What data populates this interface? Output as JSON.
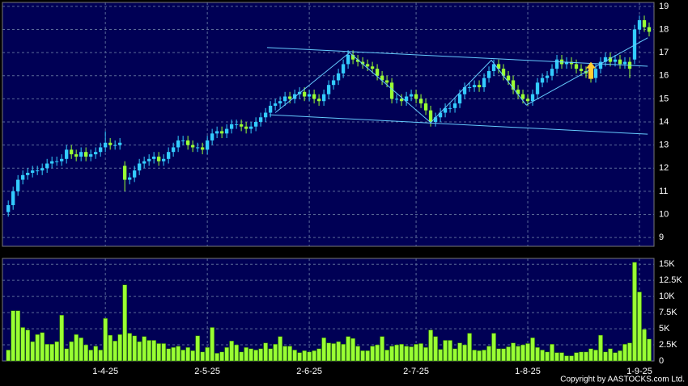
{
  "chart_data": {
    "type": "candlestick",
    "up_color": "#33ccff",
    "down_color": "#99ff33",
    "open": [
      10.1,
      10.4,
      11.0,
      11.5,
      11.7,
      11.8,
      11.9,
      11.9,
      12.0,
      12.2,
      12.3,
      12.3,
      12.4,
      12.8,
      12.6,
      12.5,
      12.7,
      12.5,
      12.6,
      12.7,
      12.9,
      13.1,
      13.0,
      13.0,
      12.1,
      11.5,
      11.6,
      11.9,
      12.2,
      12.3,
      12.4,
      12.5,
      12.3,
      12.4,
      12.7,
      12.9,
      13.2,
      13.2,
      13.0,
      12.9,
      12.9,
      12.8,
      13.2,
      13.5,
      13.6,
      13.5,
      13.7,
      13.9,
      13.9,
      13.8,
      13.7,
      13.8,
      14.0,
      14.2,
      14.4,
      14.7,
      14.8,
      14.9,
      15.1,
      15.0,
      15.2,
      15.3,
      15.1,
      15.2,
      15.0,
      14.9,
      15.2,
      15.6,
      15.8,
      16.1,
      16.5,
      16.9,
      16.7,
      16.6,
      16.5,
      16.4,
      16.3,
      16.0,
      15.8,
      15.7,
      15.0,
      15.0,
      14.9,
      15.1,
      15.2,
      15.0,
      14.8,
      14.5,
      14.0,
      14.2,
      14.4,
      14.6,
      14.6,
      14.8,
      15.2,
      15.5,
      15.5,
      15.6,
      15.5,
      15.9,
      16.2,
      16.5,
      16.3,
      16.0,
      15.8,
      15.4,
      15.2,
      15.0,
      14.9,
      15.2,
      15.7,
      15.9,
      16.0,
      16.3,
      16.7,
      16.5,
      16.6,
      16.5,
      16.3,
      16.2,
      16.1,
      15.9,
      16.3,
      16.6,
      16.8,
      16.6,
      16.7,
      16.5,
      16.6,
      16.7,
      18.0,
      18.4,
      18.1
    ],
    "high": [
      10.6,
      11.2,
      11.7,
      11.9,
      12.0,
      12.1,
      12.1,
      12.2,
      12.4,
      12.5,
      12.5,
      12.6,
      13.0,
      13.0,
      12.8,
      12.9,
      12.9,
      12.8,
      12.9,
      13.1,
      13.6,
      13.3,
      13.2,
      13.3,
      12.3,
      11.8,
      12.1,
      12.4,
      12.5,
      12.6,
      12.7,
      12.7,
      12.6,
      12.9,
      13.1,
      13.4,
      13.4,
      13.4,
      13.2,
      13.1,
      13.1,
      13.4,
      13.7,
      13.8,
      13.8,
      13.9,
      14.1,
      14.1,
      14.1,
      14.0,
      14.0,
      14.2,
      14.4,
      14.6,
      14.9,
      15.0,
      15.1,
      15.3,
      15.3,
      15.4,
      15.5,
      15.5,
      15.4,
      15.4,
      15.2,
      15.4,
      15.8,
      16.0,
      16.3,
      16.7,
      17.1,
      17.1,
      16.9,
      16.8,
      16.7,
      16.6,
      16.5,
      16.2,
      16.0,
      15.9,
      15.2,
      15.2,
      15.3,
      15.4,
      15.4,
      15.2,
      15.0,
      14.7,
      14.4,
      14.6,
      14.8,
      14.8,
      15.0,
      15.4,
      15.7,
      15.7,
      15.8,
      15.8,
      16.1,
      16.4,
      16.7,
      16.7,
      16.5,
      16.2,
      16.0,
      15.6,
      15.4,
      15.2,
      15.4,
      15.9,
      16.1,
      16.2,
      16.5,
      16.9,
      16.9,
      16.8,
      16.8,
      16.7,
      16.5,
      16.4,
      16.3,
      16.5,
      16.8,
      17.0,
      17.0,
      16.9,
      16.9,
      16.8,
      16.8,
      18.2,
      18.6,
      18.6,
      18.3
    ],
    "low": [
      9.9,
      10.2,
      10.8,
      11.3,
      11.5,
      11.6,
      11.7,
      11.7,
      11.8,
      12.0,
      12.1,
      12.1,
      12.2,
      12.4,
      12.3,
      12.3,
      12.3,
      12.3,
      12.4,
      12.5,
      12.7,
      12.8,
      12.8,
      12.8,
      11.0,
      11.3,
      11.4,
      11.7,
      12.0,
      12.1,
      12.2,
      12.1,
      12.1,
      12.2,
      12.5,
      12.7,
      13.0,
      12.8,
      12.7,
      12.7,
      12.6,
      12.6,
      13.0,
      13.3,
      13.3,
      13.3,
      13.5,
      13.7,
      13.6,
      13.5,
      13.5,
      13.6,
      13.8,
      14.0,
      14.2,
      14.5,
      14.6,
      14.7,
      14.8,
      14.8,
      15.0,
      14.9,
      14.9,
      14.8,
      14.7,
      14.7,
      15.0,
      15.4,
      15.6,
      15.9,
      16.3,
      16.5,
      16.4,
      16.3,
      16.2,
      16.1,
      15.8,
      15.6,
      15.5,
      14.8,
      14.8,
      14.7,
      14.7,
      14.9,
      14.8,
      14.6,
      14.3,
      13.8,
      13.8,
      14.0,
      14.2,
      14.4,
      14.4,
      14.6,
      15.0,
      15.3,
      15.3,
      15.3,
      15.3,
      15.7,
      16.0,
      16.1,
      15.8,
      15.6,
      15.2,
      15.0,
      14.8,
      14.7,
      14.7,
      15.0,
      15.5,
      15.7,
      15.8,
      16.1,
      16.3,
      16.3,
      16.3,
      16.1,
      16.0,
      15.9,
      15.7,
      15.7,
      16.1,
      16.4,
      16.4,
      16.4,
      16.3,
      16.3,
      15.9,
      16.5,
      17.8,
      17.9,
      17.7
    ],
    "close": [
      10.4,
      11.0,
      11.5,
      11.7,
      11.8,
      11.9,
      11.9,
      12.0,
      12.2,
      12.3,
      12.3,
      12.4,
      12.8,
      12.6,
      12.5,
      12.7,
      12.5,
      12.6,
      12.7,
      12.9,
      13.1,
      13.0,
      13.0,
      13.1,
      11.5,
      11.6,
      11.9,
      12.2,
      12.3,
      12.4,
      12.5,
      12.3,
      12.4,
      12.7,
      12.9,
      13.2,
      13.2,
      13.0,
      12.9,
      12.9,
      12.8,
      13.2,
      13.5,
      13.6,
      13.5,
      13.7,
      13.9,
      13.9,
      13.8,
      13.7,
      13.8,
      14.0,
      14.2,
      14.4,
      14.7,
      14.8,
      14.9,
      15.1,
      15.0,
      15.2,
      15.3,
      15.1,
      15.2,
      15.0,
      14.9,
      15.2,
      15.6,
      15.8,
      16.1,
      16.5,
      16.9,
      16.7,
      16.6,
      16.5,
      16.4,
      16.3,
      16.0,
      15.8,
      15.7,
      15.0,
      15.0,
      14.9,
      15.1,
      15.2,
      15.0,
      14.8,
      14.5,
      14.0,
      14.2,
      14.4,
      14.6,
      14.6,
      14.8,
      15.2,
      15.5,
      15.5,
      15.6,
      15.5,
      15.9,
      16.2,
      16.5,
      16.3,
      16.0,
      15.8,
      15.4,
      15.2,
      15.0,
      14.9,
      15.2,
      15.7,
      15.9,
      16.0,
      16.3,
      16.7,
      16.5,
      16.6,
      16.5,
      16.3,
      16.2,
      16.1,
      15.9,
      16.3,
      16.6,
      16.8,
      16.6,
      16.7,
      16.5,
      16.6,
      16.3,
      18.0,
      18.4,
      18.1,
      17.9
    ],
    "xlim": [
      -1.2,
      133
    ],
    "xticks": [
      {
        "value": 20,
        "label": "1-4-25"
      },
      {
        "value": 41,
        "label": "2-5-25"
      },
      {
        "value": 62,
        "label": "2-6-25"
      },
      {
        "value": 84,
        "label": "2-7-25"
      },
      {
        "value": 107,
        "label": "1-8-25"
      },
      {
        "value": 130,
        "label": "1-9-25"
      }
    ],
    "ylim": [
      8.62,
      19.17
    ],
    "yticks": [
      9,
      10,
      11,
      12,
      13,
      14,
      15,
      16,
      17,
      18,
      19
    ],
    "grid": true,
    "trend_color": "#66ccff",
    "trend_lines": [
      {
        "points": [
          [
            53.3,
            17.22
          ],
          [
            131.7,
            16.41
          ]
        ]
      },
      {
        "points": [
          [
            53.8,
            14.31
          ],
          [
            131.7,
            13.47
          ]
        ]
      },
      {
        "points": [
          [
            55,
            14.4
          ],
          [
            70.3,
            17.0
          ],
          [
            87,
            13.97
          ],
          [
            99.5,
            16.67
          ],
          [
            106.7,
            14.73
          ],
          [
            131.7,
            17.64
          ]
        ]
      }
    ],
    "annotations": [
      {
        "shape": "up-arrow",
        "color": "#ffcc33",
        "x": 120,
        "y": 16.6
      }
    ],
    "volume": {
      "color": "#99ff33",
      "values": [
        1.7,
        7.8,
        7.8,
        5.2,
        4.8,
        3,
        4.1,
        4.4,
        2.6,
        2.6,
        3,
        7.1,
        1.9,
        3,
        4.1,
        3.6,
        2.5,
        1.7,
        2.3,
        1.7,
        6.6,
        4,
        3.1,
        4.1,
        11.8,
        4.3,
        3.9,
        3,
        3.8,
        3.2,
        3.2,
        2.7,
        2.7,
        1.9,
        2.1,
        2.3,
        1.7,
        2.1,
        1.6,
        3.9,
        1.4,
        2.1,
        5.2,
        1.2,
        1.4,
        2.1,
        3.1,
        2.5,
        1.4,
        2.1,
        1.9,
        1.7,
        1.9,
        2.8,
        1.9,
        2.6,
        3.8,
        2.3,
        2.3,
        1.7,
        1.3,
        1.6,
        1.4,
        1.6,
        1.9,
        3.6,
        2.8,
        2.7,
        3,
        2.6,
        3.8,
        3.5,
        2.3,
        1.6,
        1.6,
        2.3,
        2.5,
        3.8,
        1.7,
        2.3,
        2.5,
        2.6,
        2.3,
        2.2,
        2.6,
        2.7,
        2.1,
        4.8,
        3.8,
        1.8,
        3.2,
        3.2,
        1.9,
        2.8,
        2.5,
        4.3,
        1.7,
        1.6,
        1.7,
        2.3,
        4.3,
        1.9,
        1.9,
        2.2,
        2.8,
        2.3,
        2.5,
        2.7,
        3.6,
        2.1,
        1.7,
        1.4,
        2.6,
        1.3,
        1.3,
        0.8,
        0.8,
        1.3,
        1.4,
        1.4,
        1.9,
        1.7,
        4,
        1.4,
        1.9,
        1.3,
        1.6,
        2.6,
        2.8,
        15.3,
        10.7,
        4.9,
        3.4
      ],
      "ylim": [
        0,
        15.9
      ],
      "yticks": [
        0,
        {
          "value": 2.5,
          "label": "2.5K"
        },
        {
          "value": 5,
          "label": "5K"
        },
        {
          "value": 7.5,
          "label": "7.5K"
        },
        {
          "value": 10,
          "label": "10K"
        },
        {
          "value": 12.5,
          "label": "12.5K"
        },
        {
          "value": 15,
          "label": "15K"
        }
      ]
    }
  },
  "footer": {
    "copyright": "Copyright by AASTOCKS.com Ltd."
  }
}
